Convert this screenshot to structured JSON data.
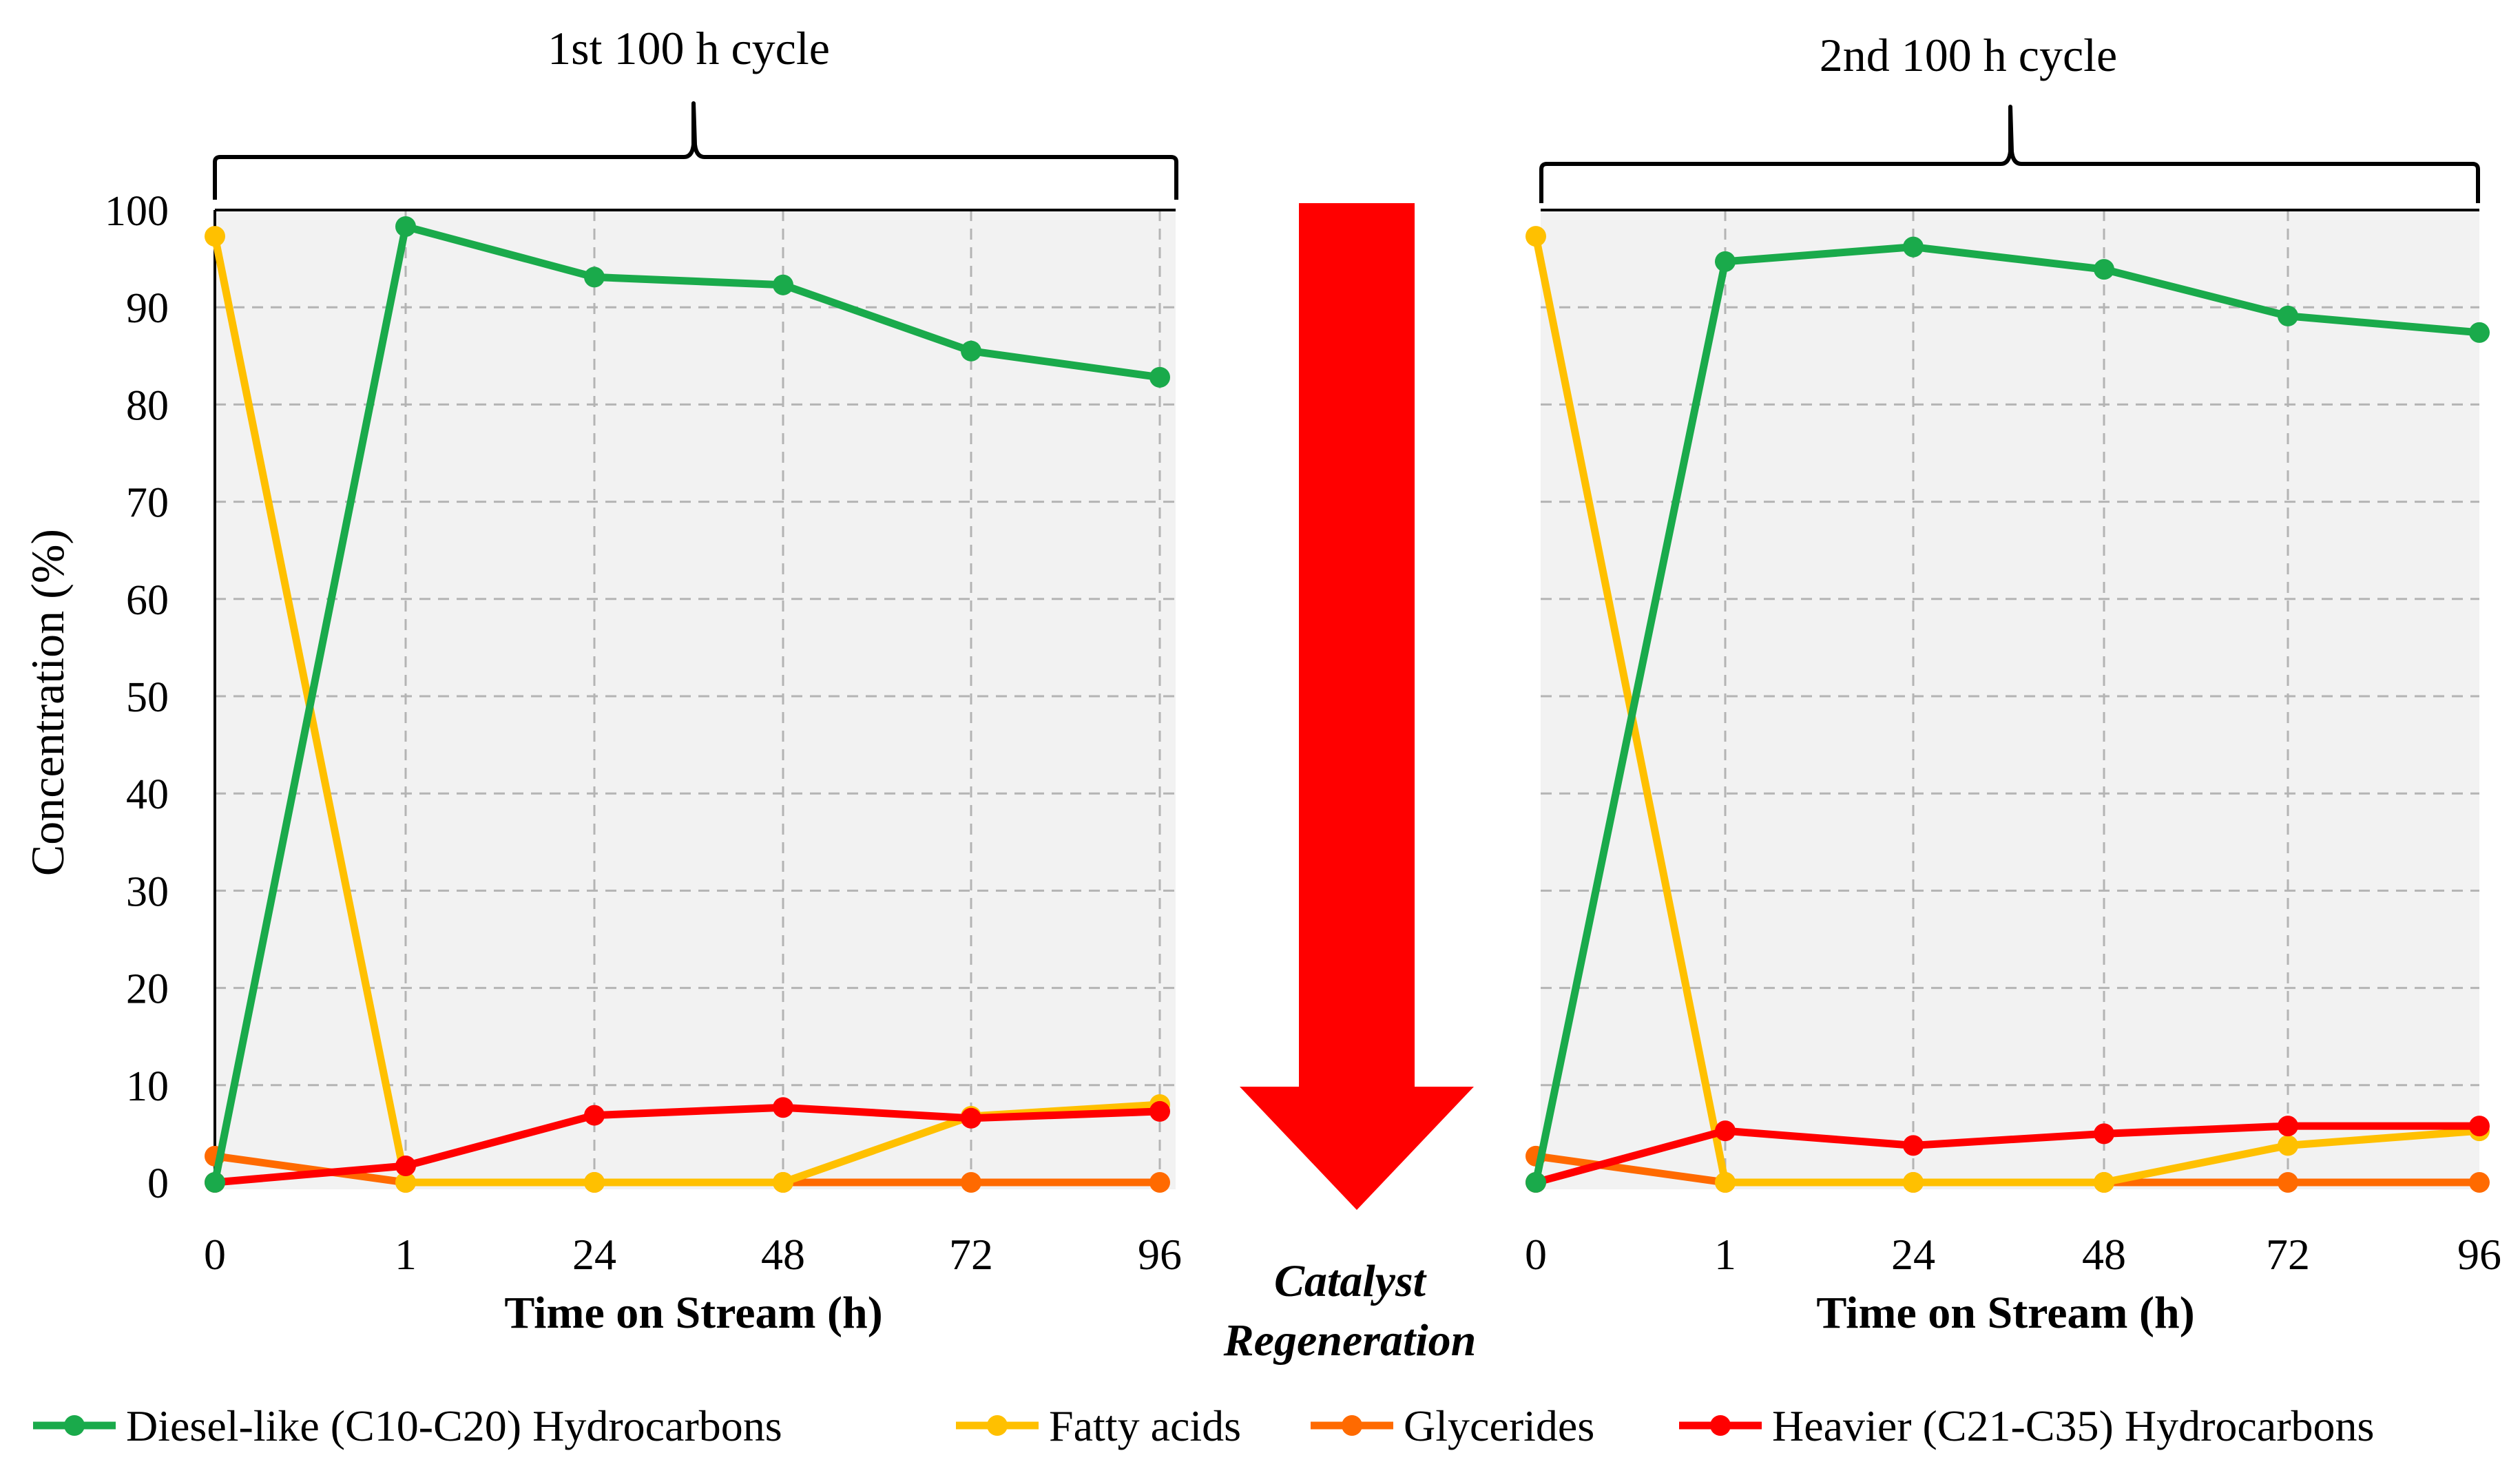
{
  "y_axis_label": "Concentration (%)",
  "regeneration_label": {
    "line1": "Catalyst",
    "line2": "Regeneration"
  },
  "colors": {
    "diesel": "#1aaa4b",
    "fatty": "#ffc000",
    "glycerides": "#ff6a00",
    "heavier": "#ff0000",
    "arrow": "#ff0000",
    "plot_bg": "#f2f2f2",
    "grid": "#b4b4b4"
  },
  "legend": [
    {
      "key": "diesel",
      "label": "Diesel-like (C10-C20) Hydrocarbons"
    },
    {
      "key": "fatty",
      "label": "Fatty acids"
    },
    {
      "key": "glycerides",
      "label": "Glycerides"
    },
    {
      "key": "heavier",
      "label": "Heavier (C21-C35) Hydrocarbons"
    }
  ],
  "chart_data": [
    {
      "type": "line",
      "title": "1st 100 h cycle",
      "xlabel": "Time on Stream (h)",
      "ylabel": "Concentration (%)",
      "categories": [
        "0",
        "1",
        "24",
        "48",
        "72",
        "96"
      ],
      "ylim": [
        0,
        100
      ],
      "yticks": [
        0,
        10,
        20,
        30,
        40,
        50,
        60,
        70,
        80,
        90,
        100
      ],
      "grid": true,
      "series": [
        {
          "key": "diesel",
          "name": "Diesel-like (C10-C20) Hydrocarbons",
          "values": [
            0,
            98.3,
            93.1,
            92.3,
            85.5,
            82.8
          ]
        },
        {
          "key": "fatty",
          "name": "Fatty acids",
          "values": [
            97.3,
            0,
            0,
            0,
            6.8,
            8.0
          ]
        },
        {
          "key": "glycerides",
          "name": "Glycerides",
          "values": [
            2.7,
            0,
            0,
            0,
            0,
            0
          ]
        },
        {
          "key": "heavier",
          "name": "Heavier (C21-C35) Hydrocarbons",
          "values": [
            0,
            1.7,
            6.9,
            7.7,
            6.6,
            7.3
          ]
        }
      ]
    },
    {
      "type": "line",
      "title": "2nd 100 h cycle",
      "xlabel": "Time on Stream (h)",
      "ylabel": "",
      "categories": [
        "0",
        "1",
        "24",
        "48",
        "72",
        "96"
      ],
      "ylim": [
        0,
        100
      ],
      "grid": true,
      "series": [
        {
          "key": "diesel",
          "name": "Diesel-like (C10-C20) Hydrocarbons",
          "values": [
            0,
            94.7,
            96.2,
            93.9,
            89.1,
            87.4
          ]
        },
        {
          "key": "fatty",
          "name": "Fatty acids",
          "values": [
            97.3,
            0,
            0,
            0,
            3.8,
            5.3
          ]
        },
        {
          "key": "glycerides",
          "name": "Glycerides",
          "values": [
            2.7,
            0,
            0,
            0,
            0,
            0
          ]
        },
        {
          "key": "heavier",
          "name": "Heavier (C21-C35) Hydrocarbons",
          "values": [
            0,
            5.3,
            3.8,
            5.0,
            5.8,
            5.8
          ]
        }
      ]
    }
  ]
}
